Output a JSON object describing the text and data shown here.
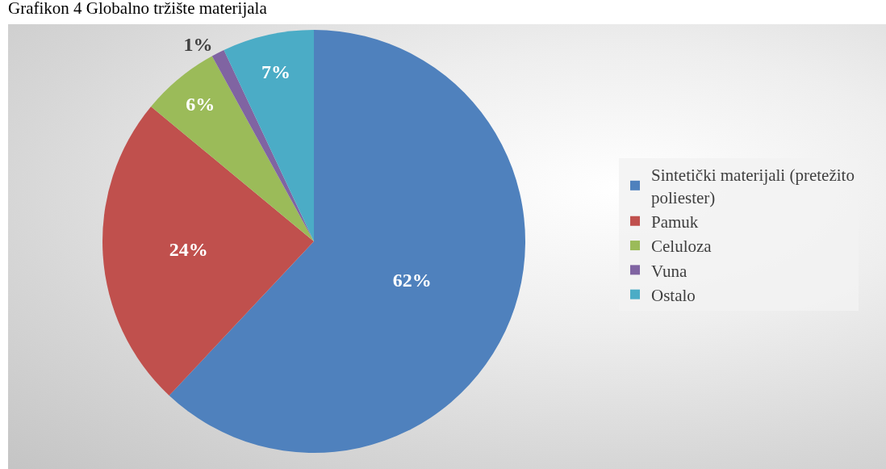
{
  "chart_data": {
    "type": "pie",
    "title": "Grafikon 4 Globalno tržište materijala",
    "categories": [
      "Sintetički materijali (pretežito poliester)",
      "Pamuk",
      "Celuloza",
      "Vuna",
      "Ostalo"
    ],
    "values": [
      62,
      24,
      6,
      1,
      7
    ],
    "value_labels": [
      "62%",
      "24%",
      "6%",
      "1%",
      "7%"
    ],
    "colors": [
      "#4f81bd",
      "#c0504d",
      "#9bbb59",
      "#8064a2",
      "#4bacc6"
    ],
    "legend": "right"
  }
}
